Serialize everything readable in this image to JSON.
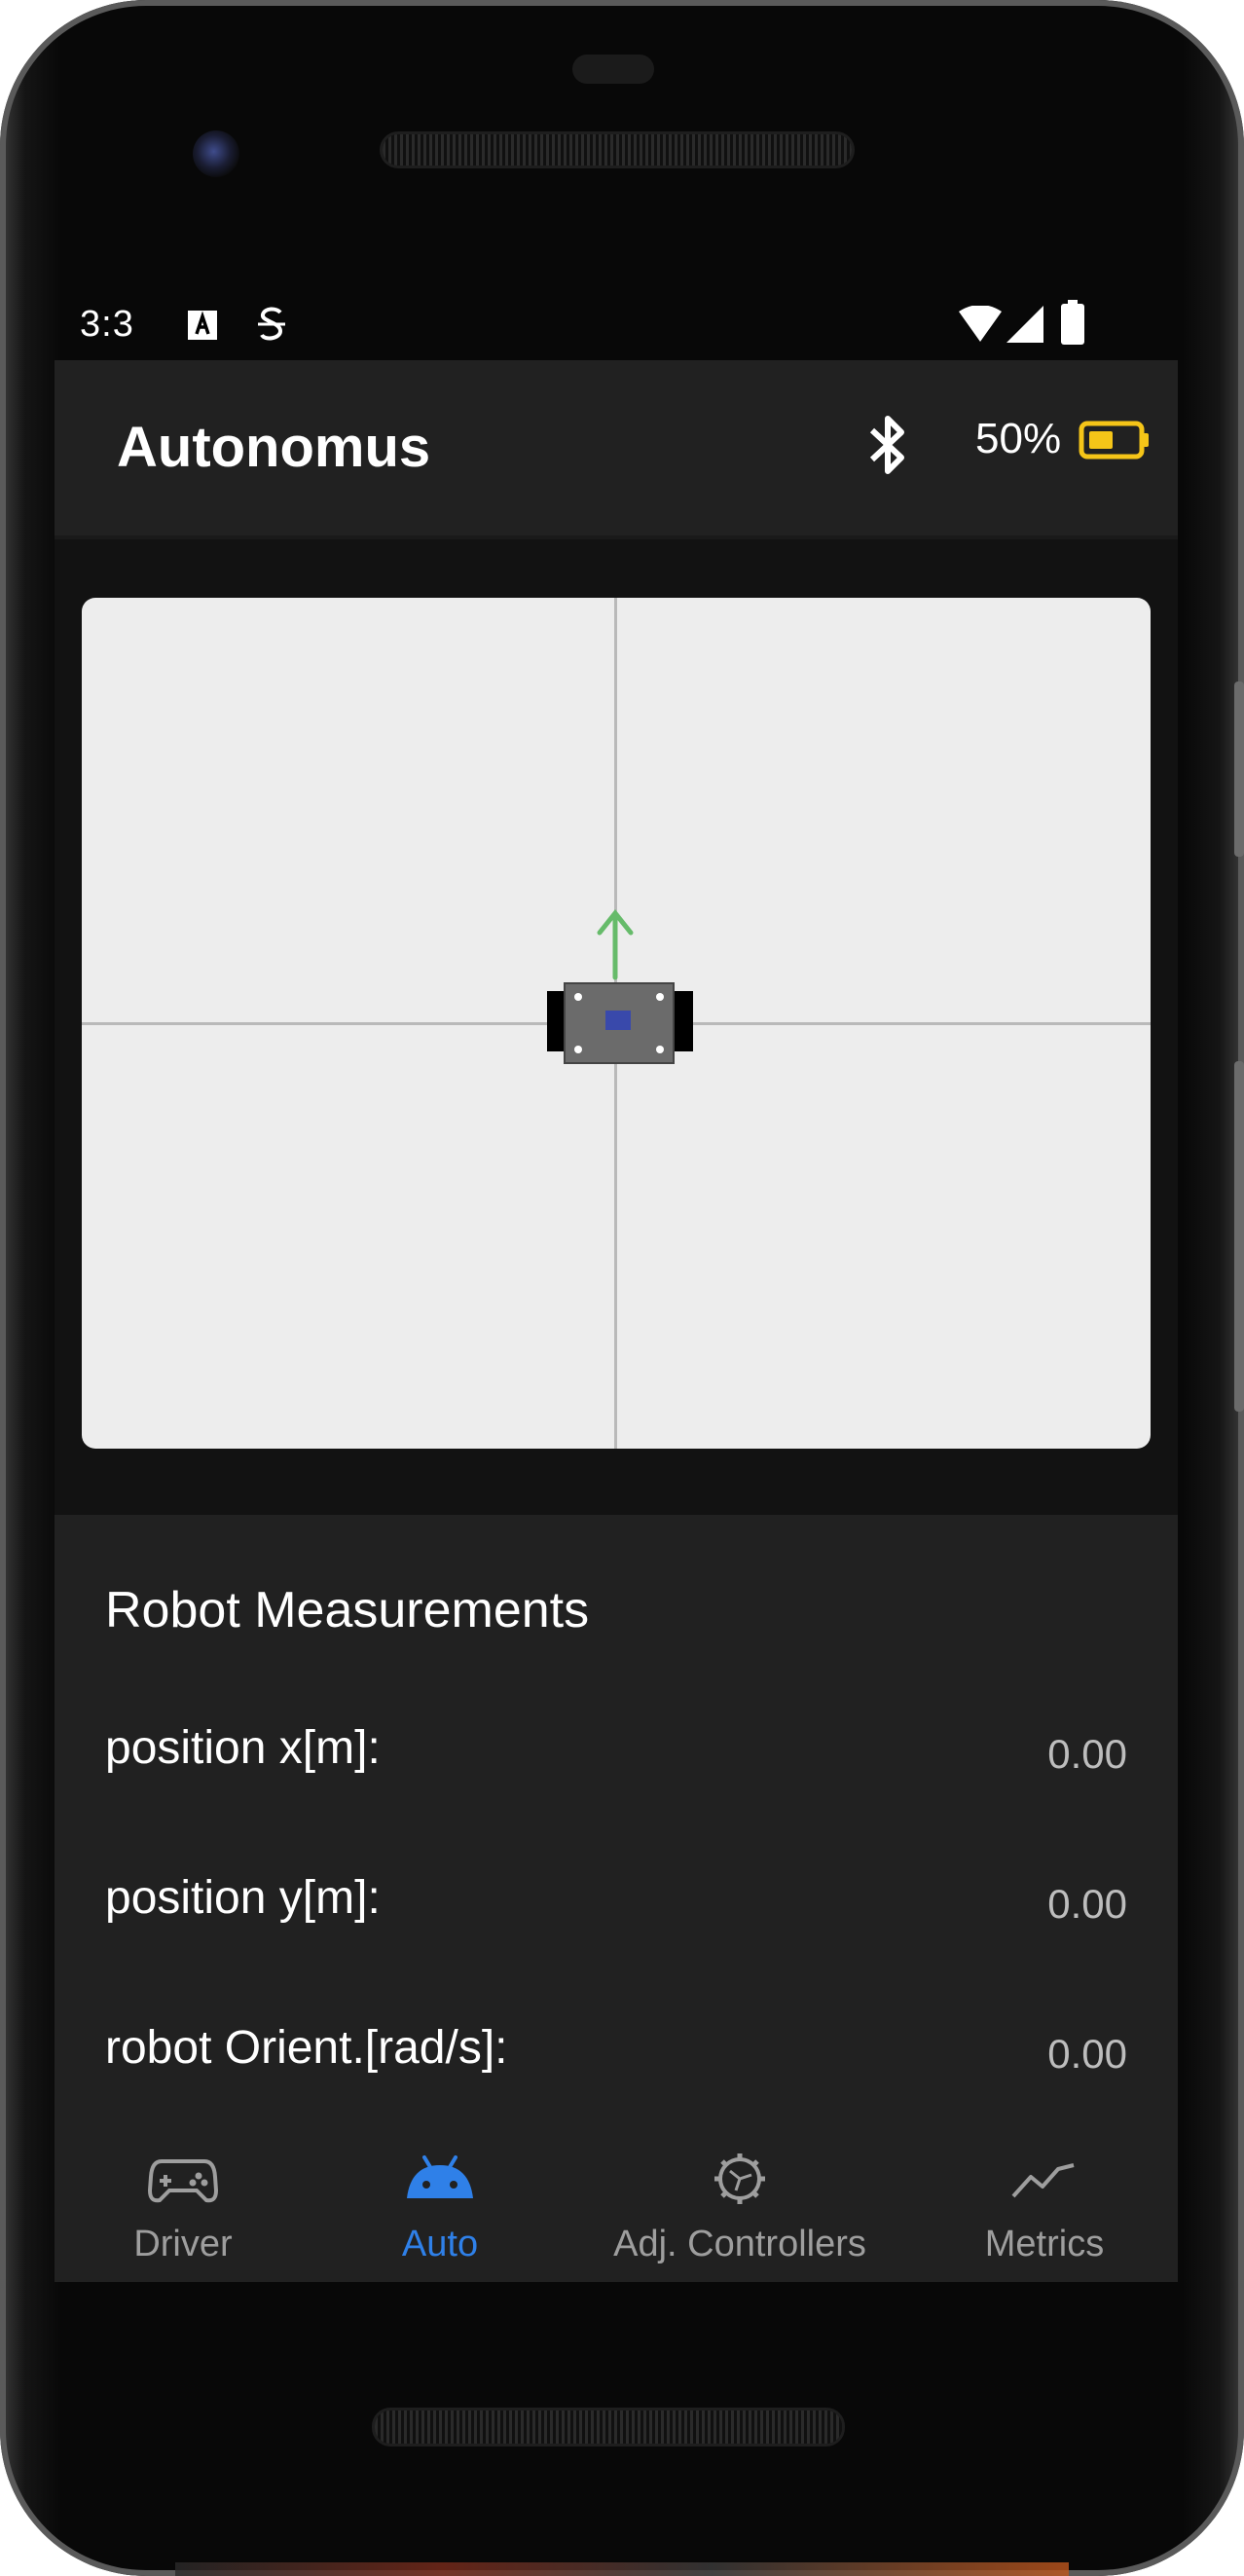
{
  "status_bar": {
    "time": "3:3",
    "icons": [
      "notification-a-icon",
      "sim-card-icon",
      "wifi-icon",
      "signal-icon",
      "battery-icon"
    ]
  },
  "app_bar": {
    "title": "Autonomus",
    "bluetooth_icon": "bluetooth-icon",
    "battery_percent": "50%",
    "battery_icon": "battery-half-icon",
    "battery_color": "#f5c518"
  },
  "map": {
    "background": "#ededed",
    "axis_color": "#b9b9b9",
    "heading_arrow_color": "#66bb6a",
    "robot_body_color": "#6b6b6b",
    "robot_center_color": "#3949ab"
  },
  "measurements": {
    "title": "Robot Measurements",
    "rows": [
      {
        "label": "position x[m]:",
        "value": "0.00"
      },
      {
        "label": "position y[m]:",
        "value": "0.00"
      },
      {
        "label": "robot Orient.[rad/s]:",
        "value": "0.00"
      }
    ]
  },
  "nav": {
    "active_color": "#2f80e8",
    "items": [
      {
        "label": "Driver",
        "icon": "gamepad-icon",
        "active": false
      },
      {
        "label": "Auto",
        "icon": "android-icon",
        "active": true
      },
      {
        "label": "Adj. Controllers",
        "icon": "gear-icon",
        "active": false
      },
      {
        "label": "Metrics",
        "icon": "line-chart-icon",
        "active": false
      }
    ]
  }
}
